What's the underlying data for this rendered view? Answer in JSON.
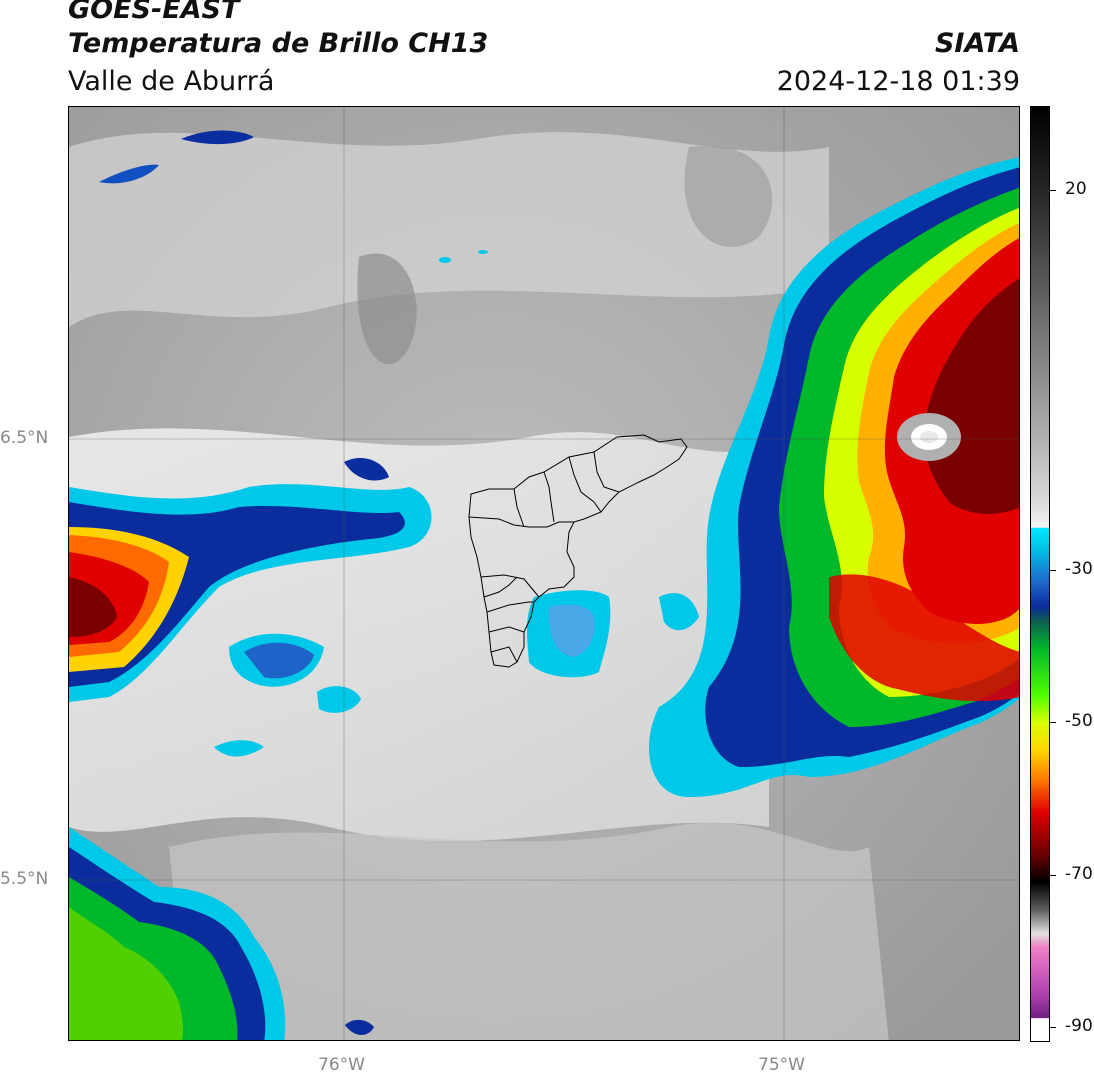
{
  "header": {
    "satellite": "GOES-EAST",
    "product": "Temperatura de Brillo CH13",
    "region": "Valle de Aburrá",
    "organization": "SIATA",
    "timestamp": "2024-12-18 01:39"
  },
  "axes": {
    "lat_labels": [
      "6.5°N",
      "5.5°N"
    ],
    "lon_labels": [
      "76°W",
      "75°W"
    ]
  },
  "colorbar": {
    "tick_labels": [
      "20",
      "-30",
      "-50",
      "-70",
      "-90"
    ],
    "tick_values": [
      20,
      -30,
      -50,
      -70,
      -90
    ],
    "range": [
      -92,
      31
    ]
  }
}
